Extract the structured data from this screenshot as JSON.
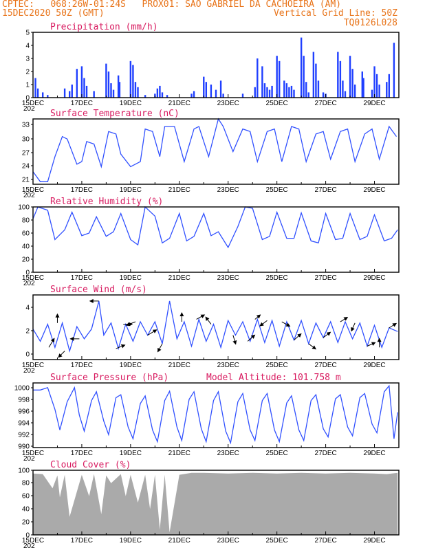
{
  "header": {
    "line1_left": "CPTEC:   068:26W-01:24S   PROX01: SAO GABRIEL DA CACHOEIRA (AM)",
    "line2_left": "15DEC2020 50Z (GMT)",
    "line2_right": "Vertical Grid Line: 50Z",
    "line3_right": "TQ0126L028"
  },
  "x_axis": {
    "labels": [
      "15DEC",
      "17DEC",
      "19DEC",
      "21DEC",
      "23DEC",
      "25DEC",
      "27DEC",
      "29DEC"
    ],
    "under_label": "202"
  },
  "chart_data": [
    {
      "type": "bar",
      "title": "Precipitation (mm/h)",
      "ylim": [
        0,
        5
      ],
      "yticks": [
        "0",
        "1",
        "2",
        "3",
        "4",
        "5"
      ],
      "color": "#1f3fff",
      "x_days": [
        0.1,
        0.2,
        0.4,
        0.6,
        1.3,
        1.5,
        1.6,
        1.8,
        2.0,
        2.1,
        2.2,
        2.5,
        3.0,
        3.1,
        3.2,
        3.3,
        3.5,
        3.55,
        4.0,
        4.1,
        4.2,
        4.3,
        4.6,
        5.0,
        5.1,
        5.2,
        5.3,
        5.5,
        6.5,
        6.6,
        7.0,
        7.1,
        7.3,
        7.5,
        7.7,
        7.8,
        8.6,
        9.1,
        9.2,
        9.4,
        9.5,
        9.6,
        9.7,
        9.8,
        10.0,
        10.1,
        10.3,
        10.4,
        10.5,
        10.6,
        10.7,
        11.0,
        11.1,
        11.2,
        11.3,
        11.5,
        11.6,
        11.7,
        11.9,
        12.0,
        12.5,
        12.6,
        12.7,
        12.8,
        13.0,
        13.1,
        13.2,
        13.5,
        13.55,
        13.9,
        14.0,
        14.1,
        14.2,
        14.5,
        14.6,
        14.8
      ],
      "values": [
        1.5,
        0.7,
        0.4,
        0.2,
        0.7,
        0.5,
        1.0,
        2.2,
        2.4,
        1.5,
        0.9,
        0.5,
        2.6,
        2.0,
        1.1,
        0.6,
        1.7,
        1.2,
        2.8,
        2.5,
        1.2,
        0.8,
        0.2,
        0.3,
        0.7,
        0.9,
        0.4,
        0.2,
        0.3,
        0.5,
        1.6,
        1.2,
        1.0,
        0.6,
        1.3,
        0.3,
        0.3,
        0.8,
        3.0,
        2.4,
        1.1,
        0.8,
        0.6,
        0.9,
        3.2,
        2.8,
        1.3,
        1.1,
        0.8,
        0.9,
        0.6,
        4.6,
        3.2,
        1.2,
        0.4,
        3.5,
        2.6,
        1.3,
        0.4,
        0.3,
        3.5,
        2.8,
        1.3,
        0.5,
        3.2,
        2.2,
        1.0,
        2.0,
        1.5,
        0.6,
        2.4,
        1.8,
        1.0,
        1.2,
        1.8,
        4.2
      ]
    },
    {
      "type": "line",
      "title": "Surface Temperature (nC)",
      "ylim": [
        20.5,
        33.5
      ],
      "yticks": [
        "21",
        "24",
        "27",
        "30",
        "33"
      ],
      "color": "#3050ff",
      "x_days": [
        0,
        0.3,
        0.6,
        0.9,
        1.2,
        1.4,
        1.8,
        2.0,
        2.2,
        2.5,
        2.8,
        3.1,
        3.4,
        3.6,
        4.0,
        4.4,
        4.6,
        4.9,
        5.2,
        5.4,
        5.8,
        6.2,
        6.6,
        6.8,
        7.2,
        7.6,
        7.8,
        8.2,
        8.6,
        8.9,
        9.2,
        9.6,
        9.9,
        10.2,
        10.6,
        10.9,
        11.2,
        11.6,
        11.9,
        12.2,
        12.6,
        12.9,
        13.2,
        13.6,
        13.9,
        14.2,
        14.6,
        14.9
      ],
      "values": [
        23.0,
        21.0,
        21.0,
        26.0,
        30.0,
        29.5,
        24.5,
        25.0,
        29.0,
        28.5,
        24.0,
        31.0,
        30.5,
        26.5,
        24.0,
        25.0,
        31.5,
        31.0,
        26.0,
        32.0,
        32.0,
        25.0,
        31.5,
        32.0,
        26.0,
        33.5,
        32.0,
        27.0,
        31.5,
        31.0,
        25.0,
        31.0,
        31.5,
        25.0,
        32.0,
        31.5,
        25.0,
        30.5,
        31.0,
        25.5,
        31.0,
        31.5,
        25.0,
        30.5,
        31.5,
        25.5,
        32.0,
        30.0
      ]
    },
    {
      "type": "line",
      "title": "Relative Humidity (%)",
      "ylim": [
        0,
        100
      ],
      "yticks": [
        "0",
        "20",
        "40",
        "60",
        "80",
        "100"
      ],
      "color": "#3050ff",
      "x_days": [
        0,
        0.2,
        0.6,
        0.9,
        1.3,
        1.6,
        2.0,
        2.3,
        2.6,
        3.0,
        3.3,
        3.6,
        4.0,
        4.3,
        4.6,
        5.0,
        5.3,
        5.6,
        6.0,
        6.3,
        6.6,
        7.0,
        7.3,
        7.6,
        8.0,
        8.4,
        8.7,
        9.0,
        9.4,
        9.7,
        10.0,
        10.4,
        10.7,
        11.0,
        11.4,
        11.7,
        12.0,
        12.4,
        12.7,
        13.0,
        13.4,
        13.7,
        14.0,
        14.4,
        14.7,
        14.95
      ],
      "values": [
        82,
        100,
        95,
        50,
        65,
        92,
        56,
        60,
        85,
        55,
        62,
        90,
        50,
        42,
        100,
        86,
        45,
        52,
        90,
        48,
        55,
        90,
        56,
        62,
        38,
        70,
        100,
        98,
        50,
        55,
        92,
        52,
        52,
        91,
        48,
        45,
        90,
        50,
        52,
        90,
        50,
        55,
        88,
        48,
        52,
        65
      ]
    },
    {
      "type": "line",
      "title": "Surface Wind (m/s)",
      "ylim": [
        -0.5,
        4.8
      ],
      "yticks": [
        "0",
        "2",
        "4"
      ],
      "color": "#3050ff",
      "x_days": [
        0,
        0.3,
        0.6,
        0.9,
        1.2,
        1.5,
        1.8,
        2.1,
        2.4,
        2.7,
        2.9,
        3.2,
        3.5,
        3.8,
        4.1,
        4.4,
        4.7,
        5.0,
        5.3,
        5.6,
        5.9,
        6.2,
        6.5,
        6.8,
        7.1,
        7.4,
        7.7,
        8.0,
        8.3,
        8.6,
        8.9,
        9.2,
        9.5,
        9.8,
        10.1,
        10.4,
        10.7,
        11.0,
        11.3,
        11.6,
        11.9,
        12.2,
        12.5,
        12.8,
        13.1,
        13.4,
        13.7,
        14.0,
        14.3,
        14.6,
        14.95
      ],
      "values": [
        2.0,
        1.0,
        2.4,
        0.5,
        2.5,
        0.2,
        2.2,
        1.2,
        2.0,
        4.3,
        1.5,
        2.5,
        0.4,
        2.4,
        1.0,
        2.6,
        1.5,
        2.6,
        0.8,
        4.3,
        1.2,
        2.6,
        0.6,
        2.8,
        1.0,
        2.4,
        0.5,
        2.7,
        1.5,
        2.6,
        1.0,
        2.8,
        0.9,
        2.7,
        0.6,
        2.6,
        1.1,
        2.7,
        0.8,
        2.5,
        1.3,
        2.6,
        0.9,
        2.6,
        1.2,
        2.5,
        0.6,
        2.3,
        0.5,
        2.1,
        1.8
      ],
      "vectors": [
        {
          "day": 0.65,
          "u": 0.6,
          "v": 1.0
        },
        {
          "day": 1.0,
          "u": 0.0,
          "v": 1.0
        },
        {
          "day": 1.3,
          "u": -0.7,
          "v": -0.7
        },
        {
          "day": 1.9,
          "u": -1.0,
          "v": 0.0
        },
        {
          "day": 2.7,
          "u": -1.0,
          "v": 0.0
        },
        {
          "day": 3.4,
          "u": 1.0,
          "v": 0.4
        },
        {
          "day": 3.7,
          "u": 1.0,
          "v": 0.0
        },
        {
          "day": 4.2,
          "u": -1.0,
          "v": -0.4
        },
        {
          "day": 4.7,
          "u": 1.0,
          "v": 0.6
        },
        {
          "day": 5.3,
          "u": -0.5,
          "v": -0.9
        },
        {
          "day": 6.1,
          "u": 0.0,
          "v": 1.0
        },
        {
          "day": 6.7,
          "u": 0.9,
          "v": 0.5
        },
        {
          "day": 7.3,
          "u": -0.6,
          "v": 0.8
        },
        {
          "day": 8.2,
          "u": 0.3,
          "v": -1.0
        },
        {
          "day": 8.8,
          "u": 0.8,
          "v": 0.7
        },
        {
          "day": 9.1,
          "u": 0.6,
          "v": 0.5
        },
        {
          "day": 9.6,
          "u": -0.8,
          "v": -0.6
        },
        {
          "day": 10.2,
          "u": 0.9,
          "v": -0.5
        },
        {
          "day": 10.7,
          "u": 0.8,
          "v": 0.7
        },
        {
          "day": 11.3,
          "u": 0.8,
          "v": -0.6
        },
        {
          "day": 11.9,
          "u": 0.8,
          "v": 0.6
        },
        {
          "day": 12.6,
          "u": 0.8,
          "v": 0.5
        },
        {
          "day": 13.2,
          "u": -0.4,
          "v": -0.9
        },
        {
          "day": 13.7,
          "u": 0.9,
          "v": 0.4
        },
        {
          "day": 14.2,
          "u": 0.0,
          "v": 1.0
        },
        {
          "day": 14.6,
          "u": 0.8,
          "v": 0.5
        }
      ]
    },
    {
      "type": "line",
      "title": "Surface Pressure (hPa)",
      "subtitle": "Model Altitude: 101.758  m",
      "ylim": [
        990,
        1001
      ],
      "yticks": [
        "990",
        "992",
        "994",
        "996",
        "998",
        "1000"
      ],
      "color": "#3050ff",
      "x_days": [
        0,
        0.3,
        0.6,
        0.9,
        1.1,
        1.4,
        1.7,
        1.9,
        2.1,
        2.4,
        2.6,
        2.9,
        3.1,
        3.4,
        3.6,
        3.9,
        4.1,
        4.4,
        4.6,
        4.9,
        5.1,
        5.4,
        5.6,
        5.9,
        6.1,
        6.4,
        6.6,
        6.9,
        7.1,
        7.4,
        7.6,
        7.9,
        8.1,
        8.4,
        8.6,
        8.9,
        9.1,
        9.4,
        9.6,
        9.9,
        10.1,
        10.4,
        10.6,
        10.9,
        11.1,
        11.4,
        11.6,
        11.9,
        12.1,
        12.4,
        12.6,
        12.9,
        13.1,
        13.4,
        13.6,
        13.9,
        14.1,
        14.4,
        14.6,
        14.8,
        14.95
      ],
      "values": [
        999.8,
        999.8,
        1000.2,
        996.5,
        993.0,
        997.8,
        1000.2,
        995.5,
        992.8,
        998.0,
        999.5,
        994.5,
        992.2,
        998.5,
        999.0,
        993.5,
        991.5,
        997.5,
        998.8,
        993.0,
        991.0,
        998.0,
        999.6,
        993.5,
        991.2,
        998.2,
        999.5,
        993.2,
        991.0,
        998.0,
        999.5,
        992.8,
        990.8,
        997.8,
        999.2,
        993.0,
        991.2,
        998.0,
        999.2,
        993.0,
        991.0,
        997.6,
        998.8,
        993.0,
        991.2,
        998.0,
        999.0,
        993.2,
        991.8,
        998.3,
        999.0,
        993.5,
        992.0,
        998.5,
        999.2,
        994.0,
        992.5,
        999.5,
        1000.5,
        991.5,
        996.0
      ]
    },
    {
      "type": "area",
      "title": "Cloud Cover (%)",
      "ylim": [
        0,
        100
      ],
      "yticks": [
        "0",
        "20",
        "40",
        "60",
        "80",
        "100"
      ],
      "color": "#aaaaaa",
      "x_days": [
        0,
        0.4,
        0.8,
        1.0,
        1.1,
        1.3,
        1.5,
        2.0,
        2.3,
        2.5,
        2.8,
        3.0,
        3.2,
        3.6,
        3.8,
        4.0,
        4.3,
        4.6,
        4.8,
        5.0,
        5.2,
        5.4,
        5.6,
        6.0,
        6.5,
        7.0,
        8.0,
        9.0,
        10.0,
        11.0,
        12.0,
        13.0,
        14.0,
        14.5,
        14.95
      ],
      "values": [
        95,
        94,
        72,
        92,
        58,
        93,
        28,
        93,
        60,
        94,
        32,
        92,
        80,
        94,
        60,
        93,
        50,
        93,
        40,
        93,
        8,
        93,
        4,
        93,
        96,
        96,
        95,
        96,
        95,
        96,
        95,
        96,
        95,
        94,
        96
      ]
    }
  ]
}
